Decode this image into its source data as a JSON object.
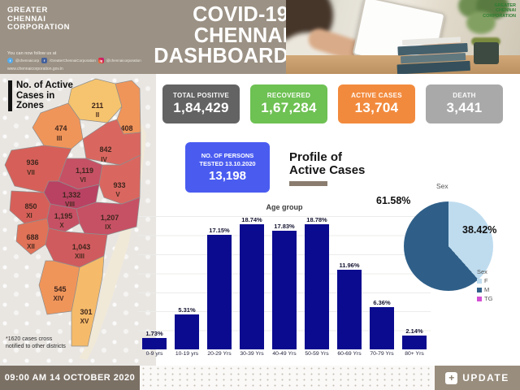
{
  "header": {
    "org_name": "GREATER\nCHENNAI\nCORPORATION",
    "follow_text": "You can now follow us at",
    "social": [
      {
        "icon": "twitter-icon",
        "glyph": "t",
        "handle": "@chennaicorp"
      },
      {
        "icon": "facebook-icon",
        "glyph": "f",
        "handle": "/GreaterChennaiCorporation"
      },
      {
        "icon": "instagram-icon",
        "glyph": "ig",
        "handle": "@chennaicorporation"
      }
    ],
    "website": "www.chennaicorporation.gov.in",
    "title": "COVID-19\nCHENNAI\nDASHBOARD",
    "photo_logo": "GREATER\nCHENNAI\nCORPORATION"
  },
  "stats": [
    {
      "label": "TOTAL POSITIVE",
      "value": "1,84,429",
      "color": "#636363"
    },
    {
      "label": "RECOVERED",
      "value": "1,67,284",
      "color": "#6ec153"
    },
    {
      "label": "ACTIVE CASES",
      "value": "13,704",
      "color": "#f28a3d"
    },
    {
      "label": "DEATH",
      "value": "3,441",
      "color": "#a9a9a9"
    }
  ],
  "tested": {
    "label": "NO. OF PERSONS\nTESTED 13.10.2020",
    "value": "13,198",
    "color": "#4a5cf0"
  },
  "profile": {
    "heading": "Profile of\nActive Cases"
  },
  "map": {
    "title": "No. of Active\nCases in\nZones",
    "footnote": "*1620 cases cross notified to other districts",
    "zones": [
      {
        "id": "I",
        "value": "408",
        "color": "#f0955a"
      },
      {
        "id": "II",
        "value": "211",
        "color": "#f6c46e"
      },
      {
        "id": "III",
        "value": "474",
        "color": "#f0955a"
      },
      {
        "id": "IV",
        "value": "842",
        "color": "#d96760"
      },
      {
        "id": "V",
        "value": "933",
        "color": "#d96760"
      },
      {
        "id": "VI",
        "value": "1,119",
        "color": "#c65165"
      },
      {
        "id": "VII",
        "value": "936",
        "color": "#d66059"
      },
      {
        "id": "VIII",
        "value": "1,332",
        "color": "#b94263"
      },
      {
        "id": "IX",
        "value": "1,207",
        "color": "#c65165"
      },
      {
        "id": "X",
        "value": "1,195",
        "color": "#c65165"
      },
      {
        "id": "XI",
        "value": "850",
        "color": "#d66059"
      },
      {
        "id": "XII",
        "value": "688",
        "color": "#e07258"
      },
      {
        "id": "XIII",
        "value": "1,043",
        "color": "#d05b5e"
      },
      {
        "id": "XIV",
        "value": "545",
        "color": "#f0955a"
      },
      {
        "id": "XV",
        "value": "301",
        "color": "#f5bb6a"
      }
    ]
  },
  "chart_data": [
    {
      "type": "bar",
      "title": "Age group",
      "categories": [
        "0-9 yrs",
        "10-19 yrs",
        "20-29 Yrs",
        "30-39 Yrs",
        "40-49 Yrs",
        "50-59 Yrs",
        "60-69 Yrs",
        "70-79 Yrs",
        "80+ Yrs"
      ],
      "values": [
        1.73,
        5.31,
        17.15,
        18.74,
        17.83,
        18.78,
        11.96,
        6.36,
        2.14
      ],
      "labels": [
        "1.73%",
        "5.31%",
        "17.15%",
        "18.74%",
        "17.83%",
        "18.78%",
        "11.96%",
        "6.36%",
        "2.14%"
      ],
      "bar_color": "#0b0b8f",
      "xlabel": "",
      "ylabel": "",
      "ylim": [
        0,
        20
      ],
      "grid": true,
      "legend_position": "none"
    },
    {
      "type": "pie",
      "title": "Sex",
      "legend_title": "Sex",
      "slices": [
        {
          "label": "F",
          "value": 38.42,
          "display": "38.42%",
          "color": "#bfdcef"
        },
        {
          "label": "M",
          "value": 61.58,
          "display": "61.58%",
          "color": "#2f5f88"
        },
        {
          "label": "TG",
          "value": 0,
          "display": "",
          "color": "#d44fd4"
        }
      ],
      "legend_position": "bottom-right"
    }
  ],
  "footer": {
    "timestamp": "09:00 AM 14 OCTOBER 2020",
    "update_label": "UPDATE",
    "update_icon": "+"
  }
}
